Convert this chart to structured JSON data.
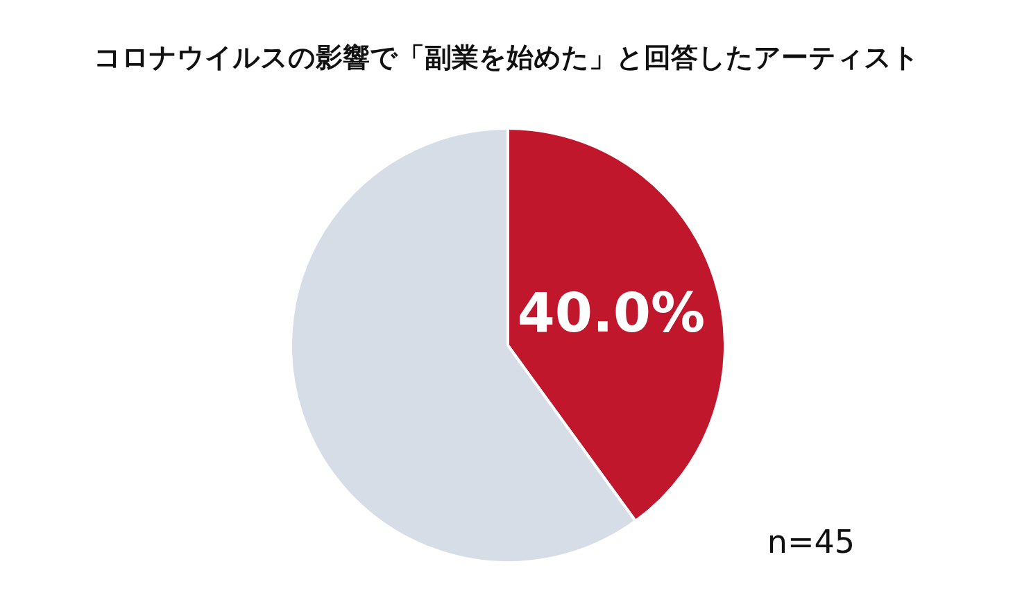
{
  "chart_data": {
    "type": "pie",
    "title": "コロナウイルスの影響で「副業を始めた」と回答したアーティスト",
    "categories": [
      null,
      null
    ],
    "values": [
      40,
      60
    ],
    "colors": [
      "#c0172d",
      "#d6dde6"
    ],
    "value_labels": [
      "40.0%",
      null
    ],
    "annotations": [
      "n=45"
    ]
  }
}
